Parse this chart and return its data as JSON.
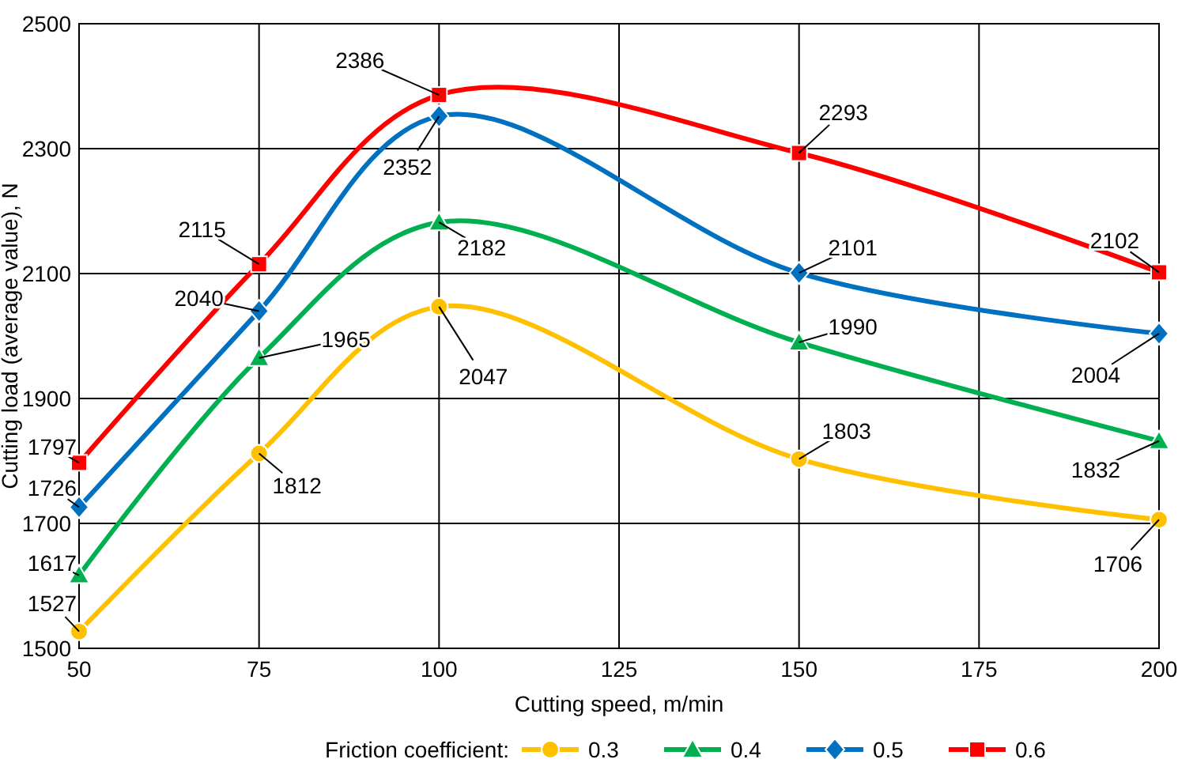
{
  "chart_data": {
    "type": "line",
    "xlabel": "Cutting speed, m/min",
    "ylabel": "Cutting load (average value), N",
    "legend_title": "Friction coefficient:",
    "x": [
      50,
      75,
      100,
      150,
      200
    ],
    "xlim": [
      50,
      200
    ],
    "xticks": [
      50,
      75,
      100,
      125,
      150,
      175,
      200
    ],
    "ylim": [
      1500,
      2500
    ],
    "yticks": [
      1500,
      1700,
      1900,
      2100,
      2300,
      2500
    ],
    "grid": true,
    "legend": "bottom",
    "data_labels": true,
    "line_style": "solid",
    "series": [
      {
        "name": "0.3",
        "color": "#ffc000",
        "marker": "circle",
        "values": [
          1527,
          1812,
          2047,
          1803,
          1706
        ]
      },
      {
        "name": "0.4",
        "color": "#00b050",
        "marker": "triangle",
        "values": [
          1617,
          1965,
          2182,
          1990,
          1832
        ]
      },
      {
        "name": "0.5",
        "color": "#0070c0",
        "marker": "diamond",
        "values": [
          1726,
          2040,
          2352,
          2101,
          2004
        ]
      },
      {
        "name": "0.6",
        "color": "#ff0000",
        "marker": "square",
        "values": [
          1797,
          2115,
          2386,
          2293,
          2102
        ]
      }
    ]
  }
}
